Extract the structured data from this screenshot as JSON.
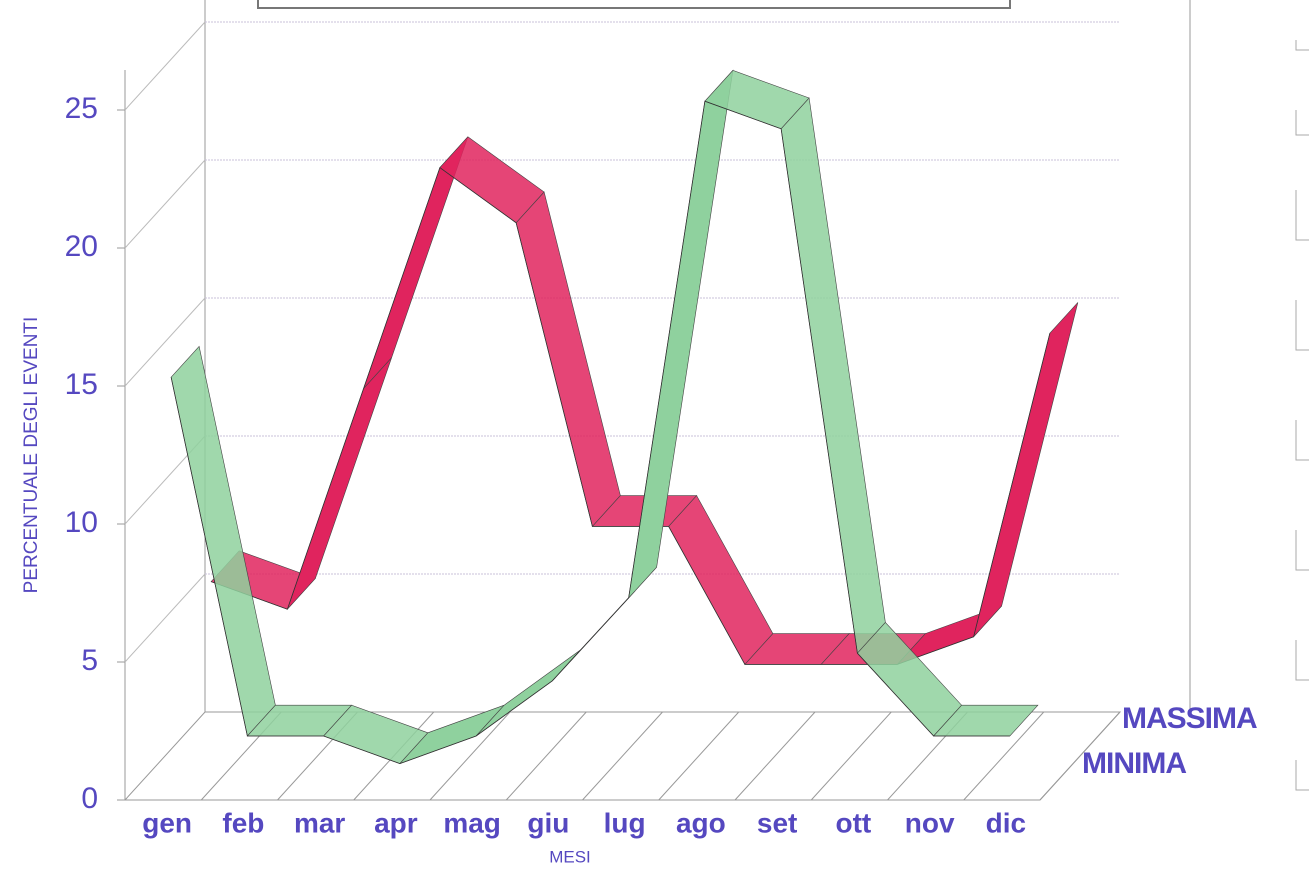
{
  "chart_data": {
    "type": "ribbon3d",
    "y_label": "PERCENTUALE DEGLI EVENTI",
    "x_label": "MESI",
    "categories": [
      "gen",
      "feb",
      "mar",
      "apr",
      "mag",
      "giu",
      "lug",
      "ago",
      "set",
      "ott",
      "nov",
      "dic"
    ],
    "series": [
      {
        "name": "MASSIMA",
        "color": "#e0245e",
        "values": [
          6,
          5,
          13,
          21,
          19,
          8,
          8,
          3,
          3,
          3,
          4,
          15
        ]
      },
      {
        "name": "MINIMA",
        "color": "#8fd19e",
        "values": [
          15,
          2,
          2,
          1,
          2,
          4,
          7,
          25,
          24,
          5,
          2,
          2
        ]
      }
    ],
    "ylim": [
      0,
      25
    ],
    "yticks": [
      0,
      5,
      10,
      15,
      20,
      25
    ],
    "grid": true
  }
}
